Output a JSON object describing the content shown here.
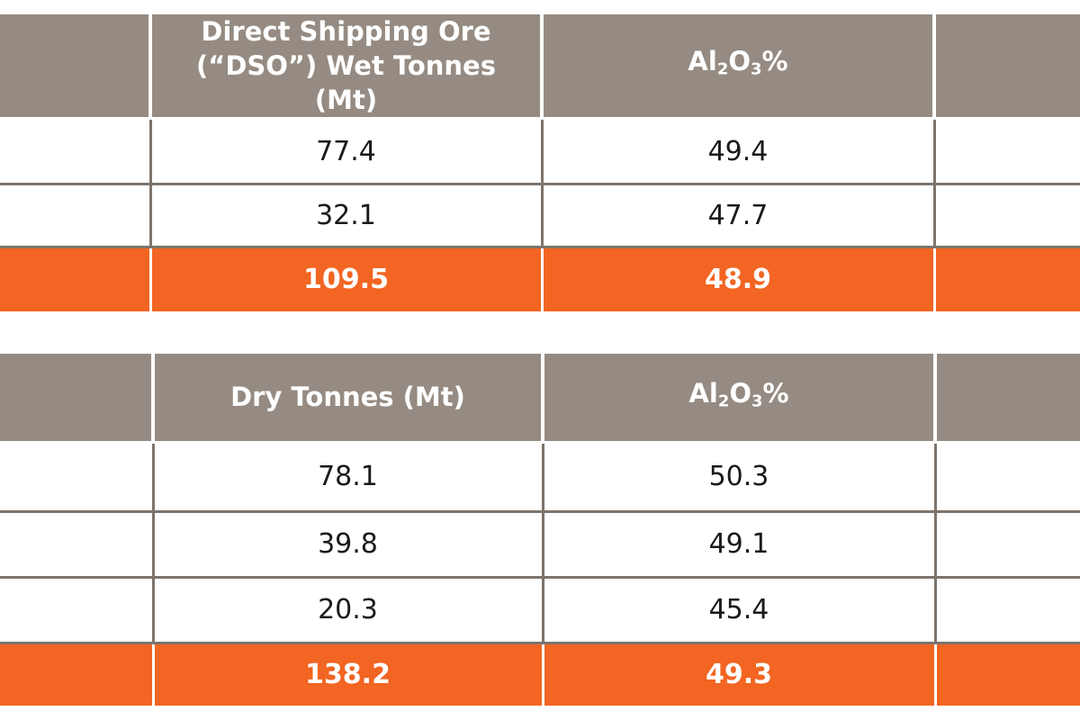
{
  "table1": {
    "headers": {
      "col2": "Direct Shipping Ore (“DSO”) Wet Tonnes (Mt)",
      "col3_prefix": "Al",
      "col3_sub1": "2",
      "col3_mid": "O",
      "col3_sub2": "3",
      "col3_suffix": "%"
    },
    "rows": [
      {
        "tonnes": "77.4",
        "al2o3": "49.4"
      },
      {
        "tonnes": "32.1",
        "al2o3": "47.7"
      }
    ],
    "total": {
      "tonnes": "109.5",
      "al2o3": "48.9"
    }
  },
  "table2": {
    "headers": {
      "col2": "Dry Tonnes (Mt)",
      "col3_prefix": "Al",
      "col3_sub1": "2",
      "col3_mid": "O",
      "col3_sub2": "3",
      "col3_suffix": "%"
    },
    "rows": [
      {
        "tonnes": "78.1",
        "al2o3": "50.3"
      },
      {
        "tonnes": "39.8",
        "al2o3": "49.1"
      },
      {
        "tonnes": "20.3",
        "al2o3": "45.4"
      }
    ],
    "total": {
      "tonnes": "138.2",
      "al2o3": "49.3"
    }
  },
  "colors": {
    "header_bg": "#958b82",
    "total_bg": "#f26522",
    "border": "#7d746c"
  }
}
